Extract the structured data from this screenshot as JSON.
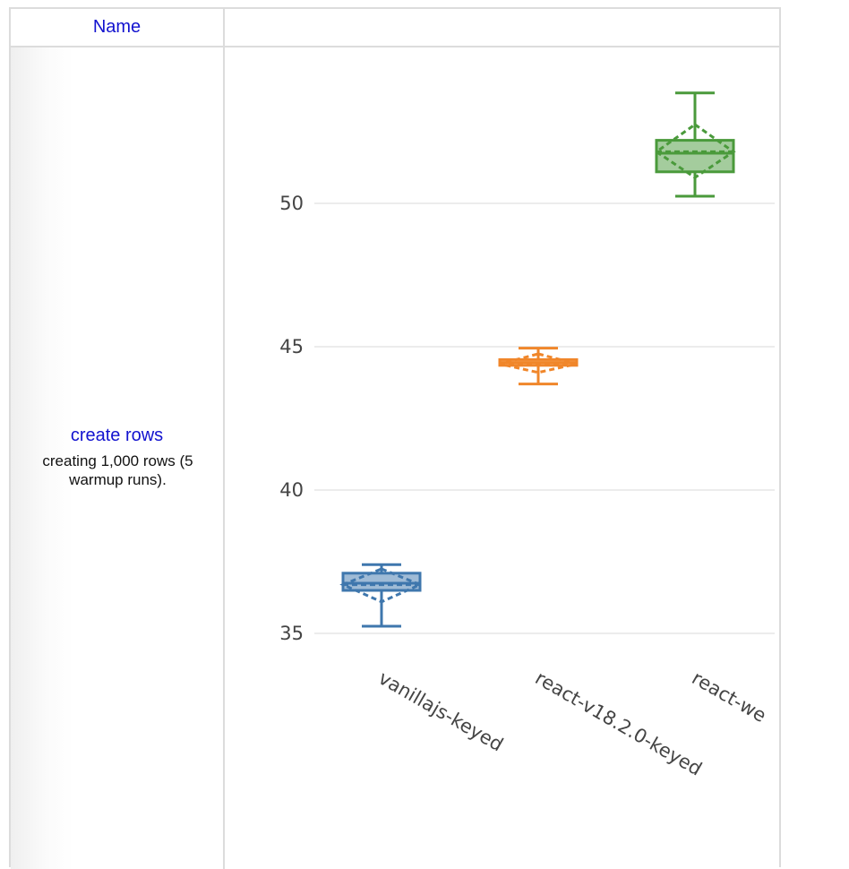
{
  "table": {
    "header_name": "Name",
    "header_chart": ""
  },
  "benchmark": {
    "title": "create rows",
    "description": "creating 1,000 rows (5 warmup runs)."
  },
  "chart_data": {
    "type": "box",
    "title": "",
    "xlabel": "",
    "ylabel": "",
    "ylim": [
      33,
      54.5
    ],
    "yticks": [
      35,
      40,
      45,
      50
    ],
    "grid": true,
    "categories": [
      "vanillajs-keyed",
      "react-v18.2.0-keyed",
      "react-we"
    ],
    "series": [
      {
        "category": "vanillajs-keyed",
        "color": "#3f77ad",
        "min": 35.25,
        "q1": 36.5,
        "median": 36.75,
        "q3": 37.1,
        "max": 37.4,
        "mean": 36.7,
        "mean_low": 36.1,
        "mean_high": 37.25
      },
      {
        "category": "react-v18.2.0-keyed",
        "color": "#f0862a",
        "min": 43.7,
        "q1": 44.35,
        "median": 44.45,
        "q3": 44.55,
        "max": 44.95,
        "mean": 44.4,
        "mean_low": 44.1,
        "mean_high": 44.75
      },
      {
        "category": "react-we",
        "color": "#4a9a3b",
        "min": 50.25,
        "q1": 51.1,
        "median": 51.75,
        "q3": 52.2,
        "max": 53.85,
        "mean": 51.8,
        "mean_low": 50.9,
        "mean_high": 52.75
      }
    ]
  }
}
